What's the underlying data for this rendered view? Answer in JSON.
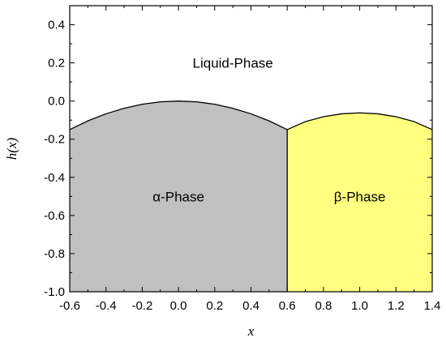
{
  "chart_data": {
    "type": "area",
    "xlabel": "x",
    "ylabel": "h(x)",
    "xlim": [
      -0.6,
      1.4
    ],
    "ylim": [
      -1.0,
      0.5
    ],
    "x_ticks": [
      -0.6,
      -0.4,
      -0.2,
      0.0,
      0.2,
      0.4,
      0.6,
      0.8,
      1.0,
      1.2,
      1.4
    ],
    "x_tick_labels": [
      "-0.6",
      "-0.4",
      "-0.2",
      "0.0",
      "0.2",
      "0.4",
      "0.6",
      "0.8",
      "1.0",
      "1.2",
      "1.4"
    ],
    "y_ticks": [
      -1.0,
      -0.8,
      -0.6,
      -0.4,
      -0.2,
      0.0,
      0.2,
      0.4
    ],
    "y_tick_labels": [
      "-1.0",
      "-0.8",
      "-0.6",
      "-0.4",
      "-0.2",
      "0.0",
      "0.2",
      "0.4"
    ],
    "grid": false,
    "series": [
      {
        "color": "#c0c0c0",
        "x": [
          -0.6,
          -0.5,
          -0.4,
          -0.3,
          -0.2,
          -0.1,
          0.0,
          0.1,
          0.2,
          0.3,
          0.4,
          0.5,
          0.6
        ],
        "y": [
          -0.15,
          -0.104,
          -0.067,
          -0.038,
          -0.017,
          -0.004,
          0.0,
          -0.004,
          -0.017,
          -0.038,
          -0.067,
          -0.104,
          -0.15
        ]
      },
      {
        "color": "#ffff80",
        "x": [
          0.6,
          0.7,
          0.8,
          0.9,
          1.0,
          1.1,
          1.2,
          1.3,
          1.4
        ],
        "y": [
          -0.15,
          -0.108,
          -0.082,
          -0.067,
          -0.062,
          -0.067,
          -0.082,
          -0.108,
          -0.15
        ]
      }
    ],
    "annotations": [
      {
        "text": "Liquid-Phase",
        "x": 0.3,
        "y": 0.2
      },
      {
        "text": "α-Phase",
        "x": 0.0,
        "y": -0.5
      },
      {
        "text": "β-Phase",
        "x": 1.0,
        "y": -0.5
      }
    ]
  }
}
